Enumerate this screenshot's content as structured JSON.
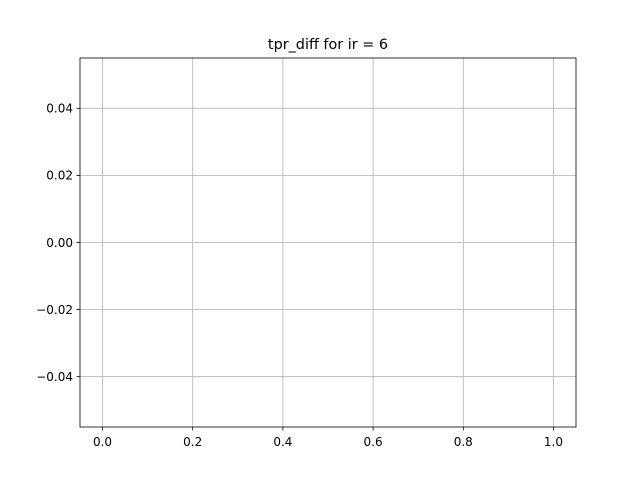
{
  "chart_data": {
    "type": "line",
    "title": "tpr_diff for ir = 6",
    "xlabel": "",
    "ylabel": "",
    "xlim": [
      -0.05,
      1.05
    ],
    "ylim": [
      -0.055,
      0.055
    ],
    "xticks": [
      0.0,
      0.2,
      0.4,
      0.6,
      0.8,
      1.0
    ],
    "xtick_labels": [
      "0.0",
      "0.2",
      "0.4",
      "0.6",
      "0.8",
      "1.0"
    ],
    "yticks": [
      -0.04,
      -0.02,
      0.0,
      0.02,
      0.04
    ],
    "ytick_labels": [
      "−0.04",
      "−0.02",
      "0.00",
      "0.02",
      "0.04"
    ],
    "grid": true,
    "series": [
      {
        "x": [],
        "y": []
      }
    ],
    "colors": {
      "grid": "#b0b0b0",
      "axes": "#000000",
      "background": "#ffffff"
    }
  }
}
